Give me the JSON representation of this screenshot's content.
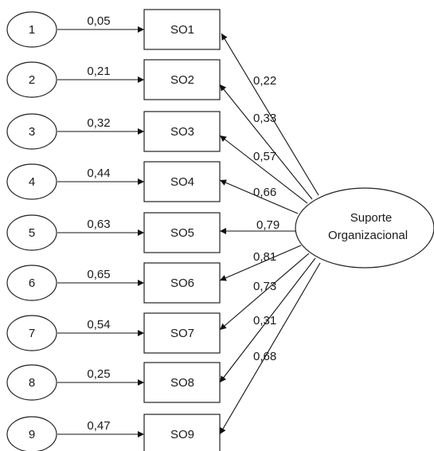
{
  "diagram": {
    "factor": {
      "lines": [
        "Suporte",
        "Organizacional"
      ]
    },
    "items": [
      {
        "error": "1",
        "indicator": "SO1",
        "error_coef": "0,05",
        "loading": "0,22"
      },
      {
        "error": "2",
        "indicator": "SO2",
        "error_coef": "0,21",
        "loading": "0,33"
      },
      {
        "error": "3",
        "indicator": "SO3",
        "error_coef": "0,32",
        "loading": "0,57"
      },
      {
        "error": "4",
        "indicator": "SO4",
        "error_coef": "0,44",
        "loading": "0,66"
      },
      {
        "error": "5",
        "indicator": "SO5",
        "error_coef": "0,63",
        "loading": "0,79"
      },
      {
        "error": "6",
        "indicator": "SO6",
        "error_coef": "0,65",
        "loading": "0,81"
      },
      {
        "error": "7",
        "indicator": "SO7",
        "error_coef": "0,54",
        "loading": "0,73"
      },
      {
        "error": "8",
        "indicator": "SO8",
        "error_coef": "0,25",
        "loading": "0,31"
      },
      {
        "error": "9",
        "indicator": "SO9",
        "error_coef": "0,47",
        "loading": "0,68"
      }
    ]
  }
}
